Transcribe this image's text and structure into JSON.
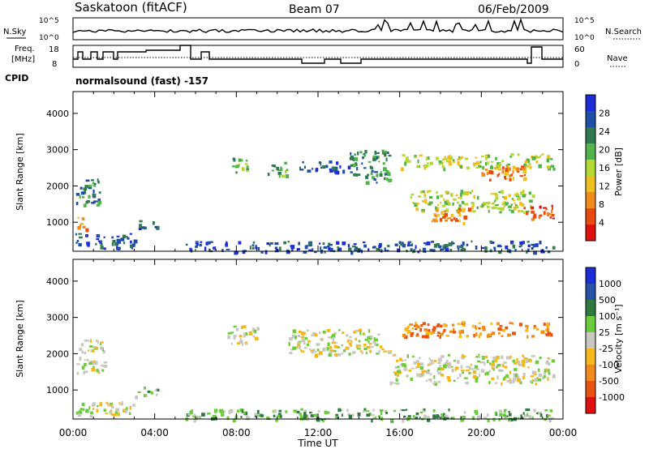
{
  "header": {
    "station": "Saskatoon (fitACF)",
    "beam": "Beam 07",
    "date": "06/Feb/2009"
  },
  "top_panels": {
    "nsky_label": "N.Sky",
    "nsky_ticks": [
      "10^5",
      "10^0"
    ],
    "nsearch_label": "N.Search",
    "nsearch_ticks": [
      "10^5",
      "10^0"
    ],
    "freq_label_1": "Freq.",
    "freq_label_2": "[MHz]",
    "freq_ticks": [
      "18",
      "8"
    ],
    "nave_label": "Nave",
    "nave_ticks": [
      "60",
      "0"
    ],
    "cpid_label": "CPID",
    "cpid_text": "normalsound (fast) -157"
  },
  "colors": {
    "power_scale": [
      "#1c2cd6",
      "#1f4ea8",
      "#2f7a4e",
      "#52b34a",
      "#b5d933",
      "#f0c020",
      "#f08a18",
      "#e84a10",
      "#e01010"
    ],
    "velocity_scale": [
      "#1c2cd6",
      "#2952a6",
      "#2e7a3e",
      "#6ccd3c",
      "#c8c8c0",
      "#f5b81a",
      "#f08a18",
      "#e85410",
      "#e01010"
    ]
  },
  "chart_data": [
    {
      "type": "heatmap",
      "name": "power",
      "ylabel": "Slant Range [km]",
      "yticks": [
        1000,
        2000,
        3000,
        4000
      ],
      "ylim": [
        200,
        4600
      ],
      "xticks": [
        "00:00",
        "04:00",
        "08:00",
        "12:00",
        "16:00",
        "20:00",
        "00:00"
      ],
      "xlim_hours": [
        0,
        24
      ],
      "colorbar_label": "Power [dB]",
      "colorbar_ticks": [
        "28",
        "24",
        "20",
        "16",
        "12",
        "8",
        "4"
      ],
      "regions": [
        {
          "t0": 0.15,
          "t1": 1.3,
          "r0": 1500,
          "r1": 2300,
          "level": 2
        },
        {
          "t0": 0.2,
          "t1": 0.7,
          "r0": 800,
          "r1": 1200,
          "level": 6
        },
        {
          "t0": 0.1,
          "t1": 3.0,
          "r0": 300,
          "r1": 700,
          "level": 1
        },
        {
          "t0": 3.2,
          "t1": 4.2,
          "r0": 850,
          "r1": 1100,
          "level": 1
        },
        {
          "t0": 7.7,
          "t1": 8.6,
          "r0": 2400,
          "r1": 2850,
          "level": 3
        },
        {
          "t0": 9.5,
          "t1": 10.5,
          "r0": 2300,
          "r1": 2700,
          "level": 3
        },
        {
          "t0": 11.0,
          "t1": 13.5,
          "r0": 2400,
          "r1": 2700,
          "level": 1
        },
        {
          "t0": 13.5,
          "t1": 15.5,
          "r0": 2100,
          "r1": 3000,
          "level": 2
        },
        {
          "t0": 16.0,
          "t1": 23.5,
          "r0": 2500,
          "r1": 2900,
          "level": 4
        },
        {
          "t0": 20.0,
          "t1": 22.5,
          "r0": 2200,
          "r1": 2600,
          "level": 6
        },
        {
          "t0": 16.5,
          "t1": 22.5,
          "r0": 1300,
          "r1": 1900,
          "level": 4
        },
        {
          "t0": 17.5,
          "t1": 19.5,
          "r0": 1000,
          "r1": 1400,
          "level": 6
        },
        {
          "t0": 22.0,
          "t1": 23.5,
          "r0": 1100,
          "r1": 1500,
          "level": 7
        },
        {
          "t0": 5.5,
          "t1": 23.5,
          "r0": 200,
          "r1": 500,
          "level": 1
        }
      ]
    },
    {
      "type": "heatmap",
      "name": "velocity",
      "ylabel": "Slant Range [km]",
      "yticks": [
        1000,
        2000,
        3000,
        4000
      ],
      "ylim": [
        200,
        4600
      ],
      "xticks": [
        "00:00",
        "04:00",
        "08:00",
        "12:00",
        "16:00",
        "20:00",
        "00:00"
      ],
      "xlim_hours": [
        0,
        24
      ],
      "xlabel": "Time UT",
      "colorbar_label": "Velocity [m s⁻¹]",
      "colorbar_ticks": [
        "1000",
        "500",
        "100",
        "25",
        "-25",
        "-100",
        "-500",
        "-1000"
      ],
      "regions": [
        {
          "t0": 0.15,
          "t1": 1.5,
          "r0": 1500,
          "r1": 2400,
          "level": 4
        },
        {
          "t0": 0.1,
          "t1": 3.0,
          "r0": 300,
          "r1": 700,
          "level": 4
        },
        {
          "t0": 3.0,
          "t1": 4.2,
          "r0": 850,
          "r1": 1100,
          "level": 3
        },
        {
          "t0": 7.5,
          "t1": 9.0,
          "r0": 2300,
          "r1": 2800,
          "level": 4
        },
        {
          "t0": 10.5,
          "t1": 15.5,
          "r0": 2000,
          "r1": 2700,
          "level": 4
        },
        {
          "t0": 16.0,
          "t1": 23.5,
          "r0": 2500,
          "r1": 2900,
          "level": 6
        },
        {
          "t0": 15.5,
          "t1": 23.5,
          "r0": 1200,
          "r1": 2000,
          "level": 4
        },
        {
          "t0": 5.5,
          "t1": 23.5,
          "r0": 200,
          "r1": 500,
          "level": 3
        }
      ]
    }
  ]
}
